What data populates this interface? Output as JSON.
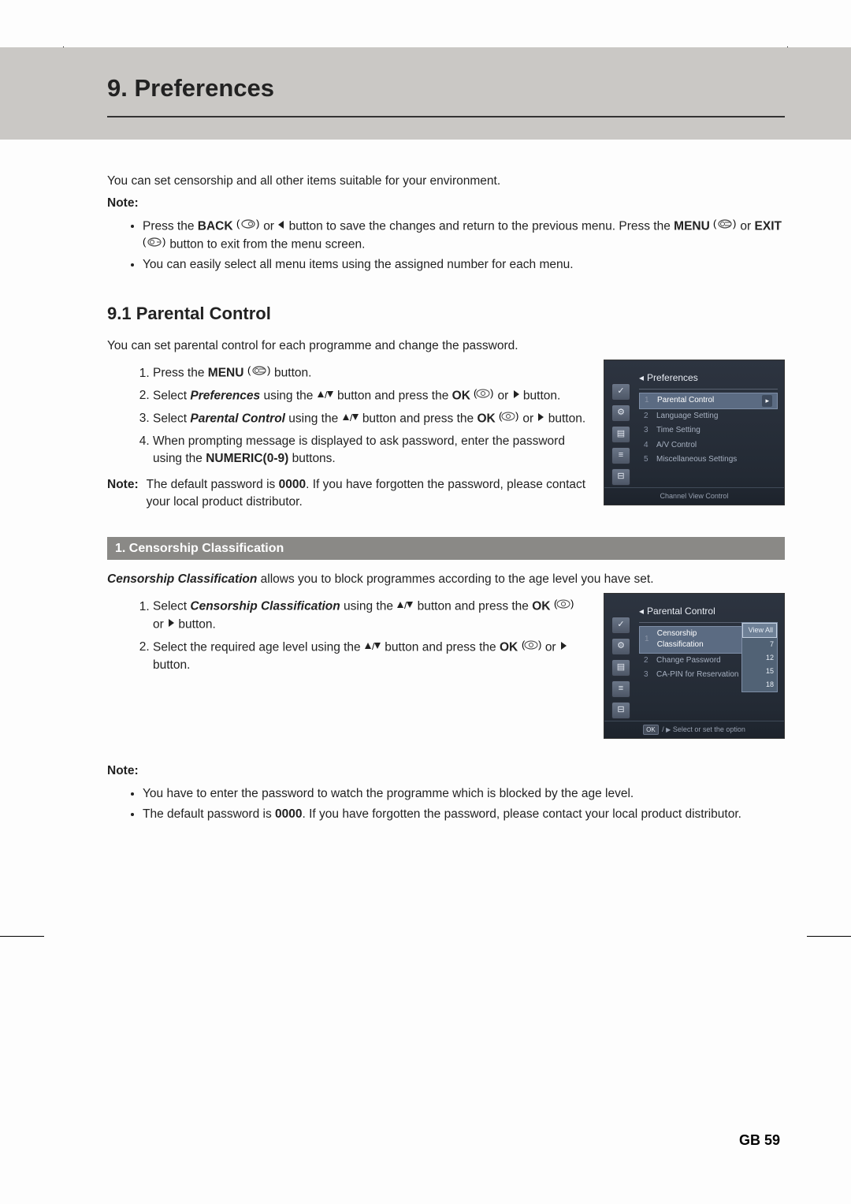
{
  "chapter_title": "9. Preferences",
  "intro": "You can set censorship and all other items suitable for your environment.",
  "note_label": "Note:",
  "note_items_top": {
    "a_pre": "Press the ",
    "a_back": "BACK",
    "a_mid1": " or ",
    "a_mid2": " button to save the changes and return to the previous menu. Press the ",
    "a_menu": "MENU",
    "a_mid3": " or ",
    "a_exit": "EXIT",
    "a_end": " button to exit from the menu screen.",
    "b": "You can easily select all menu items using the assigned number for each menu."
  },
  "subsection_title": "9.1 Parental Control",
  "subsection_intro": "You can set parental control for each programme and change the password.",
  "steps1": {
    "s1_pre": "Press the ",
    "s1_menu": "MENU",
    "s1_end": " button.",
    "s2_pre": "Select ",
    "s2_pref": "Preferences",
    "s2_mid": " using the ",
    "s2_mid2": " button and press the ",
    "s2_ok": "OK",
    "s2_or": " or ",
    "s2_end": " button.",
    "s3_pre": "Select ",
    "s3_pc": "Parental Control",
    "s3_mid": " using the ",
    "s3_mid2": " button and press the ",
    "s3_ok": "OK",
    "s3_or": " or ",
    "s3_end": " button.",
    "s4_pre": "When prompting message is displayed to ask password, enter the password using the ",
    "s4_num": "NUMERIC(0-9)",
    "s4_end": " buttons."
  },
  "note2": {
    "pre": "The default password is ",
    "pw": "0000",
    "post": ". If you have forgotten the password, please contact your local product distributor."
  },
  "subheader2": "1. Censorship Classification",
  "cc_intro_pre": "Censorship Classification",
  "cc_intro_post": " allows you to block programmes according to the age level you have set.",
  "steps2": {
    "s1_pre": "Select ",
    "s1_cc": "Censorship Classification",
    "s1_mid": " using the ",
    "s1_mid2": " button and press the ",
    "s1_ok": "OK",
    "s1_or": " or ",
    "s1_end": " button.",
    "s2_pre": "Select the required age level using the ",
    "s2_mid": " button and press the ",
    "s2_ok": "OK",
    "s2_or": " or ",
    "s2_end": " button."
  },
  "note3_items": {
    "a": "You have to enter the password to watch the programme which is blocked by the age level.",
    "b_pre": "The default password is ",
    "b_pw": "0000",
    "b_post": ". If you have forgotten the password, please contact your local product distributor."
  },
  "page_number": "GB 59",
  "shot1": {
    "title": "Preferences",
    "items": [
      {
        "n": "1",
        "label": "Parental Control",
        "sel": true
      },
      {
        "n": "2",
        "label": "Language Setting"
      },
      {
        "n": "3",
        "label": "Time Setting"
      },
      {
        "n": "4",
        "label": "A/V Control"
      },
      {
        "n": "5",
        "label": "Miscellaneous Settings"
      }
    ],
    "footer": "Channel View Control"
  },
  "shot2": {
    "title": "Parental Control",
    "items": [
      {
        "n": "1",
        "label": "Censorship Classification",
        "val": "View All",
        "sel": true
      },
      {
        "n": "2",
        "label": "Change Password"
      },
      {
        "n": "3",
        "label": "CA-PIN for Reservation"
      }
    ],
    "submenu": [
      "View All",
      "7",
      "12",
      "15",
      "18"
    ],
    "footer_ok": "OK",
    "footer": "Select or set the option"
  },
  "style": {
    "grey_band": "#cac8c5",
    "subheader_bg": "#8a8986",
    "subheader_fg": "#ffffff",
    "body_color": "#222222",
    "shot_bg_top": "#2d3440",
    "shot_sel_bg": "#5b6b82"
  }
}
